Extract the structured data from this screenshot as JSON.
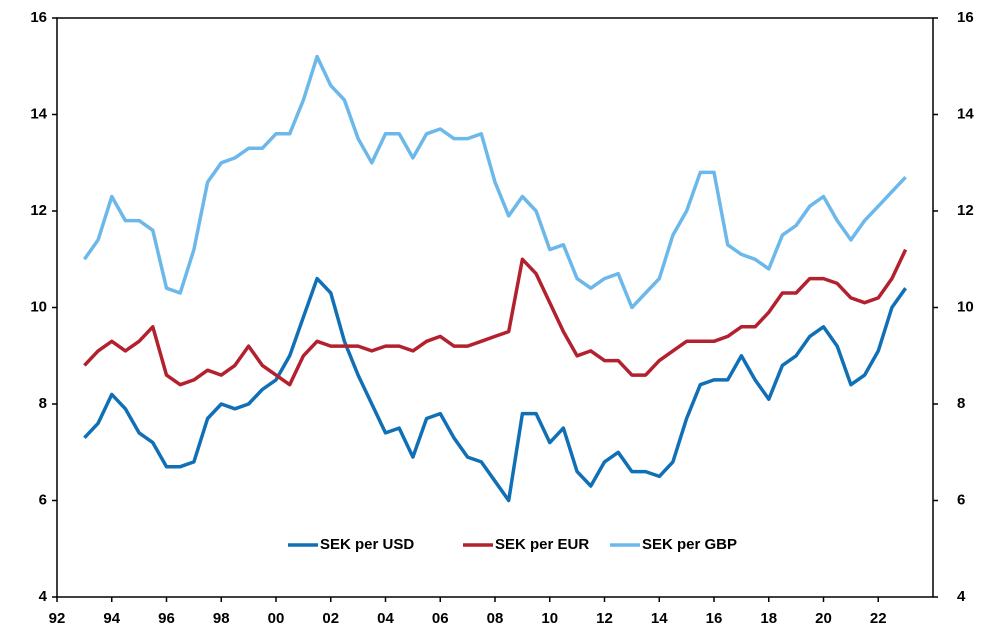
{
  "chart_data": {
    "type": "line",
    "x": [
      1993,
      1993.5,
      1994,
      1994.5,
      1995,
      1995.5,
      1996,
      1996.5,
      1997,
      1997.5,
      1998,
      1998.5,
      1999,
      1999.5,
      2000,
      2000.5,
      2001,
      2001.5,
      2002,
      2002.5,
      2003,
      2003.5,
      2004,
      2004.5,
      2005,
      2005.5,
      2006,
      2006.5,
      2007,
      2007.5,
      2008,
      2008.5,
      2009,
      2009.5,
      2010,
      2010.5,
      2011,
      2011.5,
      2012,
      2012.5,
      2013,
      2013.5,
      2014,
      2014.5,
      2015,
      2015.5,
      2016,
      2016.5,
      2017,
      2017.5,
      2018,
      2018.5,
      2019,
      2019.5,
      2020,
      2020.5,
      2021,
      2021.5,
      2022,
      2022.5,
      2023
    ],
    "series": [
      {
        "name": "SEK per USD",
        "color": "#1170b5",
        "values": [
          7.3,
          7.6,
          8.2,
          7.9,
          7.4,
          7.2,
          6.7,
          6.7,
          6.8,
          7.7,
          8.0,
          7.9,
          8.0,
          8.3,
          8.5,
          9.0,
          9.8,
          10.6,
          10.3,
          9.3,
          8.6,
          8.0,
          7.4,
          7.5,
          6.9,
          7.7,
          7.8,
          7.3,
          6.9,
          6.8,
          6.4,
          6.0,
          7.8,
          7.8,
          7.2,
          7.5,
          6.6,
          6.3,
          6.8,
          7.0,
          6.6,
          6.6,
          6.5,
          6.8,
          7.7,
          8.4,
          8.5,
          8.5,
          9.0,
          8.5,
          8.1,
          8.8,
          9.0,
          9.4,
          9.6,
          9.2,
          8.4,
          8.6,
          9.1,
          10.0,
          10.4
        ]
      },
      {
        "name": "SEK per EUR",
        "color": "#b3212f",
        "values": [
          8.8,
          9.1,
          9.3,
          9.1,
          9.3,
          9.6,
          8.6,
          8.4,
          8.5,
          8.7,
          8.6,
          8.8,
          9.2,
          8.8,
          8.6,
          8.4,
          9.0,
          9.3,
          9.2,
          9.2,
          9.2,
          9.1,
          9.2,
          9.2,
          9.1,
          9.3,
          9.4,
          9.2,
          9.2,
          9.3,
          9.4,
          9.5,
          11.0,
          10.7,
          10.1,
          9.5,
          9.0,
          9.1,
          8.9,
          8.9,
          8.6,
          8.6,
          8.9,
          9.1,
          9.3,
          9.3,
          9.3,
          9.4,
          9.6,
          9.6,
          9.9,
          10.3,
          10.3,
          10.6,
          10.6,
          10.5,
          10.2,
          10.1,
          10.2,
          10.6,
          11.2
        ]
      },
      {
        "name": "SEK per GBP",
        "color": "#6cb8ea",
        "values": [
          11.0,
          11.4,
          12.3,
          11.8,
          11.8,
          11.6,
          10.4,
          10.3,
          11.2,
          12.6,
          13.0,
          13.1,
          13.3,
          13.3,
          13.6,
          13.6,
          14.3,
          15.2,
          14.6,
          14.3,
          13.5,
          13.0,
          13.6,
          13.6,
          13.1,
          13.6,
          13.7,
          13.5,
          13.5,
          13.6,
          12.6,
          11.9,
          12.3,
          12.0,
          11.2,
          11.3,
          10.6,
          10.4,
          10.6,
          10.7,
          10.0,
          10.3,
          10.6,
          11.5,
          12.0,
          12.8,
          12.8,
          11.3,
          11.1,
          11.0,
          10.8,
          11.5,
          11.7,
          12.1,
          12.3,
          11.8,
          11.4,
          11.8,
          12.1,
          12.4,
          12.7
        ]
      }
    ],
    "xlim": [
      1992,
      2024
    ],
    "xticks": [
      {
        "value": 1992,
        "label": "92"
      },
      {
        "value": 1994,
        "label": "94"
      },
      {
        "value": 1996,
        "label": "96"
      },
      {
        "value": 1998,
        "label": "98"
      },
      {
        "value": 2000,
        "label": "00"
      },
      {
        "value": 2002,
        "label": "02"
      },
      {
        "value": 2004,
        "label": "04"
      },
      {
        "value": 2006,
        "label": "06"
      },
      {
        "value": 2008,
        "label": "08"
      },
      {
        "value": 2010,
        "label": "10"
      },
      {
        "value": 2012,
        "label": "12"
      },
      {
        "value": 2014,
        "label": "14"
      },
      {
        "value": 2016,
        "label": "16"
      },
      {
        "value": 2018,
        "label": "18"
      },
      {
        "value": 2020,
        "label": "20"
      },
      {
        "value": 2022,
        "label": "22"
      }
    ],
    "ylim": [
      4,
      16
    ],
    "yticks": [
      4,
      6,
      8,
      10,
      12,
      14,
      16
    ],
    "grid": false,
    "legend": "bottom"
  }
}
